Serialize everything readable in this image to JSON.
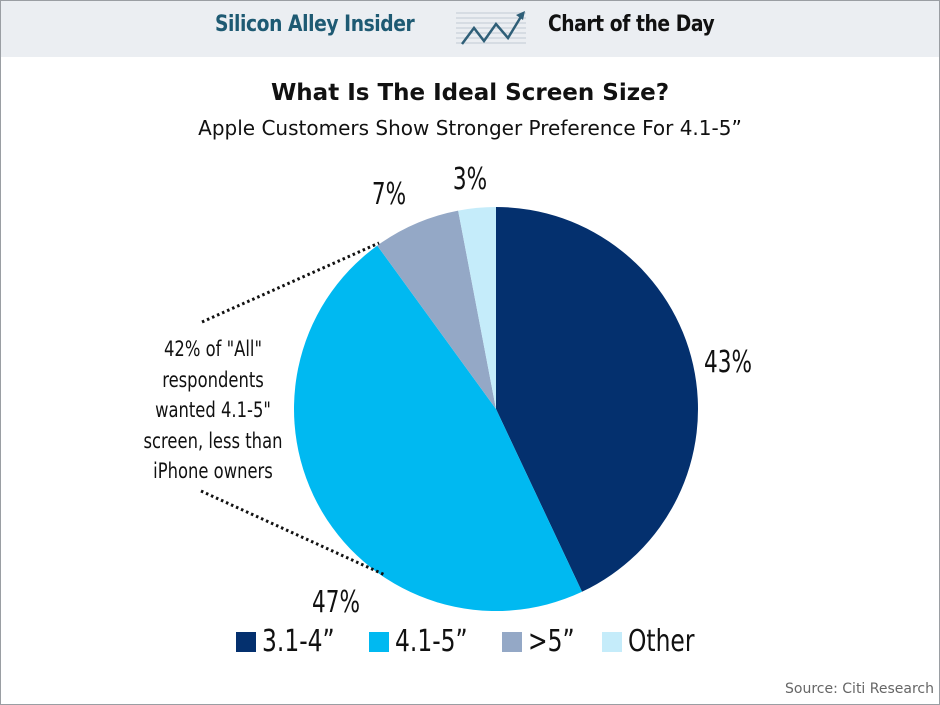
{
  "banner": {
    "brand_left": "Silicon Alley Insider",
    "brand_right": "Chart of the Day",
    "icon": "trend-chart-icon"
  },
  "chart_data": {
    "type": "pie",
    "title": "What Is The Ideal Screen Size?",
    "subtitle": "Apple Customers Show Stronger Preference For 4.1-5”",
    "start": "top, clockwise",
    "slices": [
      {
        "label": "3.1-4”",
        "value": 43,
        "value_label": "43%",
        "color": "#04306e"
      },
      {
        "label": "4.1-5”",
        "value": 47,
        "value_label": "47%",
        "color": "#00b9f1"
      },
      {
        "label": ">5”",
        "value": 7,
        "value_label": "7%",
        "color": "#94a8c6"
      },
      {
        "label": "Other",
        "value": 3,
        "value_label": "3%",
        "color": "#c5ecfa"
      }
    ],
    "legend_position": "bottom",
    "annotation": "42% of \"All\" respondents wanted 4.1-5\" screen, less than iPhone owners",
    "source": "Source: Citi Research"
  },
  "annotation_lines": [
    "42% of \"All\"",
    "respondents",
    "wanted 4.1-5\"",
    "screen, less than",
    "iPhone owners"
  ]
}
